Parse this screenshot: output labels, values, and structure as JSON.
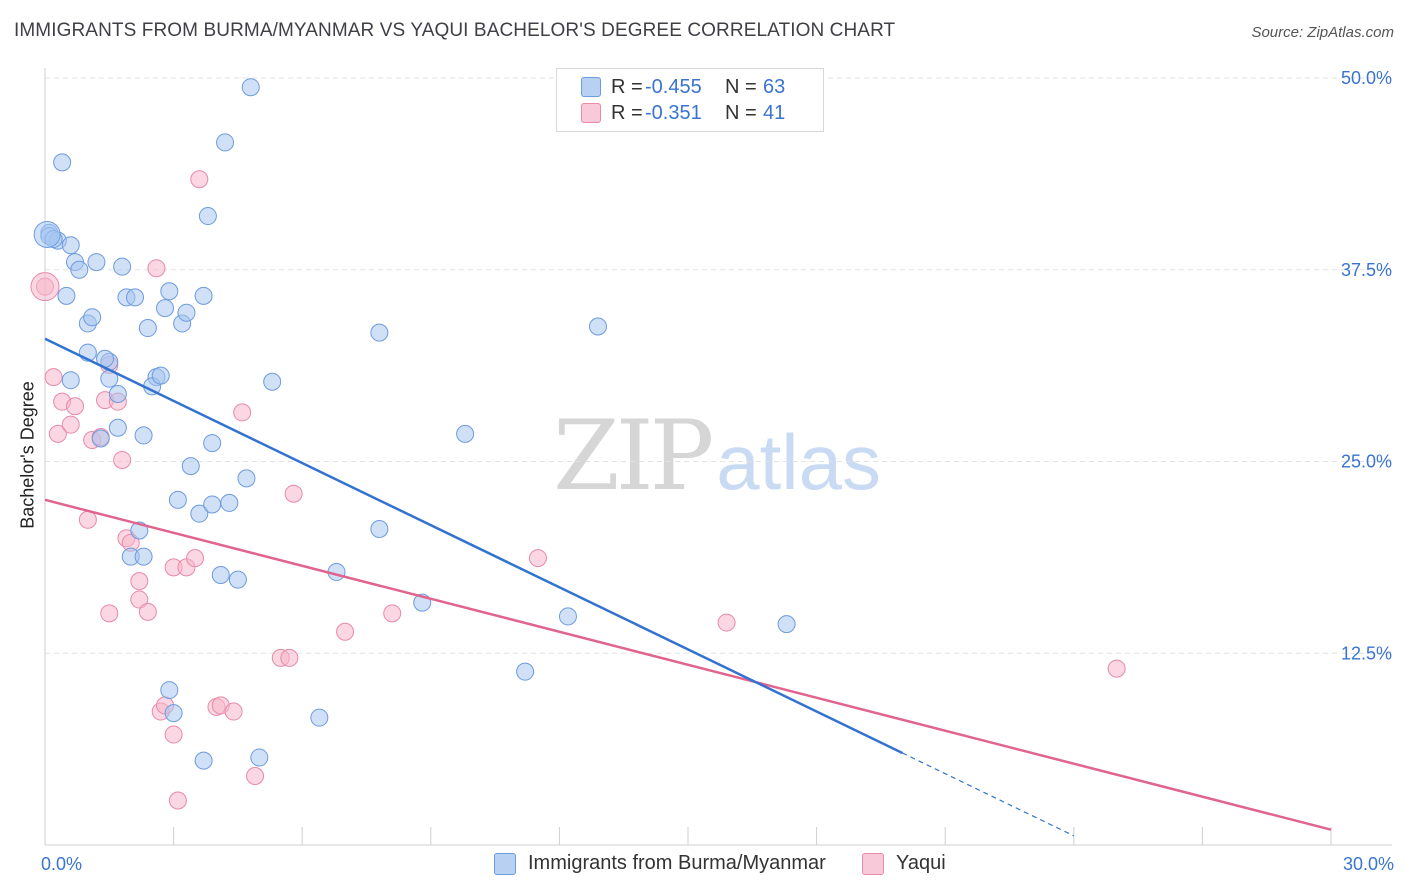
{
  "title": "IMMIGRANTS FROM BURMA/MYANMAR VS YAQUI BACHELOR'S DEGREE CORRELATION CHART",
  "source": "Source: ZipAtlas.com",
  "watermark": {
    "zip": "ZIP",
    "atlas": "atlas"
  },
  "legend": [
    {
      "r_label": "R =",
      "r_value": "-0.455",
      "n_label": "N =",
      "n_value": "63"
    },
    {
      "r_label": "R =",
      "r_value": "-0.351",
      "n_label": "N =",
      "n_value": "41"
    }
  ],
  "bottom_legend": [
    "Immigrants from Burma/Myanmar",
    "Yaqui"
  ],
  "colors": {
    "blue_fill": "#a8c6f0",
    "blue_stroke": "#6d9be0",
    "blue_line": "#3272d0",
    "pink_fill": "#f5b6cb",
    "pink_stroke": "#e88aa8",
    "pink_line": "#e0648e",
    "tick_label": "#3a74d0",
    "grid": "#e2e2e2"
  },
  "chart_data": {
    "type": "scatter",
    "title": "IMMIGRANTS FROM BURMA/MYANMAR VS YAQUI BACHELOR'S DEGREE CORRELATION CHART",
    "xlabel": "",
    "ylabel": "Bachelor's Degree",
    "xlim": [
      0,
      30
    ],
    "ylim": [
      0,
      50
    ],
    "x_tick_labels": [
      "0.0%",
      "30.0%"
    ],
    "y_ticks": [
      12.5,
      25.0,
      37.5,
      50.0
    ],
    "y_tick_labels": [
      "12.5%",
      "25.0%",
      "37.5%",
      "50.0%"
    ],
    "grid": true,
    "legend_position": "top-center",
    "series": [
      {
        "name": "Immigrants from Burma/Myanmar",
        "r": -0.455,
        "n": 63,
        "trend": {
          "x0": 0,
          "y0": 33.0,
          "x1": 20.0,
          "y1": 6.0,
          "dashed_to_x": 24.0,
          "dashed_to_y": 0.6
        },
        "points": [
          [
            0.1,
            39.9
          ],
          [
            0.1,
            39.7
          ],
          [
            0.3,
            39.4
          ],
          [
            0.2,
            39.5
          ],
          [
            0.4,
            44.5
          ],
          [
            0.6,
            39.1
          ],
          [
            0.7,
            38.0
          ],
          [
            0.8,
            37.5
          ],
          [
            1.2,
            38.0
          ],
          [
            1.8,
            37.7
          ],
          [
            0.5,
            35.8
          ],
          [
            1.0,
            34.0
          ],
          [
            1.1,
            34.4
          ],
          [
            1.9,
            35.7
          ],
          [
            2.1,
            35.7
          ],
          [
            2.4,
            33.7
          ],
          [
            2.8,
            35.0
          ],
          [
            2.9,
            36.1
          ],
          [
            3.2,
            34.0
          ],
          [
            3.3,
            34.7
          ],
          [
            3.7,
            35.8
          ],
          [
            3.8,
            41.0
          ],
          [
            4.2,
            45.8
          ],
          [
            4.8,
            49.4
          ],
          [
            1.0,
            32.1
          ],
          [
            1.5,
            31.5
          ],
          [
            1.4,
            31.7
          ],
          [
            0.6,
            30.3
          ],
          [
            1.5,
            30.4
          ],
          [
            1.7,
            29.4
          ],
          [
            2.6,
            30.5
          ],
          [
            2.5,
            29.9
          ],
          [
            2.7,
            30.6
          ],
          [
            5.3,
            30.2
          ],
          [
            7.8,
            33.4
          ],
          [
            12.9,
            33.8
          ],
          [
            1.3,
            26.5
          ],
          [
            1.7,
            27.2
          ],
          [
            2.3,
            26.7
          ],
          [
            3.9,
            26.2
          ],
          [
            3.4,
            24.7
          ],
          [
            4.7,
            23.9
          ],
          [
            3.1,
            22.5
          ],
          [
            3.6,
            21.6
          ],
          [
            3.9,
            22.2
          ],
          [
            4.3,
            22.3
          ],
          [
            9.8,
            26.8
          ],
          [
            2.2,
            20.5
          ],
          [
            2.0,
            18.8
          ],
          [
            2.3,
            18.8
          ],
          [
            4.1,
            17.6
          ],
          [
            4.5,
            17.3
          ],
          [
            6.8,
            17.8
          ],
          [
            7.8,
            20.6
          ],
          [
            8.8,
            15.8
          ],
          [
            12.2,
            14.9
          ],
          [
            17.3,
            14.4
          ],
          [
            11.2,
            11.3
          ],
          [
            2.9,
            10.1
          ],
          [
            3.0,
            8.6
          ],
          [
            6.4,
            8.3
          ],
          [
            3.7,
            5.5
          ],
          [
            5.0,
            5.7
          ]
        ]
      },
      {
        "name": "Yaqui",
        "r": -0.351,
        "n": 41,
        "trend": {
          "x0": 0,
          "y0": 22.5,
          "x1": 30.0,
          "y1": 1.0
        },
        "points": [
          [
            0.0,
            36.4
          ],
          [
            0.2,
            30.5
          ],
          [
            1.5,
            31.3
          ],
          [
            2.6,
            37.6
          ],
          [
            3.6,
            43.4
          ],
          [
            0.4,
            28.9
          ],
          [
            0.7,
            28.6
          ],
          [
            1.4,
            29.0
          ],
          [
            1.7,
            28.9
          ],
          [
            4.6,
            28.2
          ],
          [
            0.3,
            26.8
          ],
          [
            0.6,
            27.4
          ],
          [
            1.1,
            26.4
          ],
          [
            1.3,
            26.6
          ],
          [
            1.8,
            25.1
          ],
          [
            5.8,
            22.9
          ],
          [
            1.0,
            21.2
          ],
          [
            1.9,
            20.0
          ],
          [
            2.0,
            19.7
          ],
          [
            3.0,
            18.1
          ],
          [
            3.3,
            18.1
          ],
          [
            3.5,
            18.7
          ],
          [
            11.5,
            18.7
          ],
          [
            2.2,
            17.2
          ],
          [
            2.2,
            16.0
          ],
          [
            1.5,
            15.1
          ],
          [
            2.4,
            15.2
          ],
          [
            8.1,
            15.1
          ],
          [
            7.0,
            13.9
          ],
          [
            15.9,
            14.5
          ],
          [
            5.5,
            12.2
          ],
          [
            5.7,
            12.2
          ],
          [
            25.0,
            11.5
          ],
          [
            2.7,
            8.7
          ],
          [
            2.8,
            9.1
          ],
          [
            4.0,
            9.0
          ],
          [
            4.1,
            9.1
          ],
          [
            4.4,
            8.7
          ],
          [
            3.0,
            7.2
          ],
          [
            4.9,
            4.5
          ],
          [
            3.1,
            2.9
          ]
        ]
      }
    ]
  }
}
